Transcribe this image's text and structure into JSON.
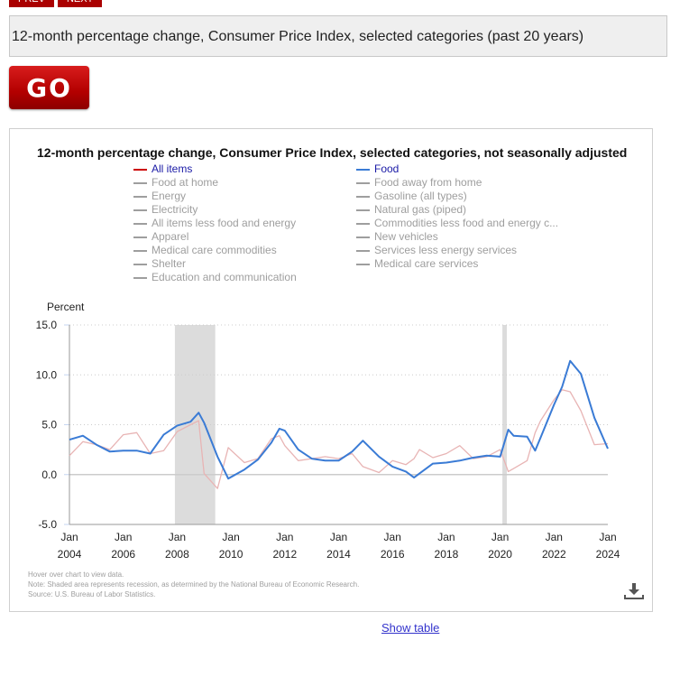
{
  "nav": {
    "prev_label": "PREV",
    "next_label": "NEXT"
  },
  "selector": {
    "value": "12-month percentage change, Consumer Price Index, selected categories (past 20 years)"
  },
  "go_button": {
    "label": "GO"
  },
  "chart": {
    "title": "12-month percentage change, Consumer Price Index, selected categories, not seasonally adjusted",
    "legend_left": [
      {
        "label": "All items",
        "color": "#cc0000",
        "active": true
      },
      {
        "label": "Food at home",
        "color": "#9e9e9e",
        "active": false
      },
      {
        "label": "Energy",
        "color": "#9e9e9e",
        "active": false
      },
      {
        "label": "Electricity",
        "color": "#9e9e9e",
        "active": false
      },
      {
        "label": "All items less food and energy",
        "color": "#9e9e9e",
        "active": false
      },
      {
        "label": "Apparel",
        "color": "#9e9e9e",
        "active": false
      },
      {
        "label": "Medical care commodities",
        "color": "#9e9e9e",
        "active": false
      },
      {
        "label": "Shelter",
        "color": "#9e9e9e",
        "active": false
      },
      {
        "label": "Education and communication",
        "color": "#9e9e9e",
        "active": false
      }
    ],
    "legend_right": [
      {
        "label": "Food",
        "color": "#3a7bd5",
        "active": true
      },
      {
        "label": "Food away from home",
        "color": "#9e9e9e",
        "active": false
      },
      {
        "label": "Gasoline (all types)",
        "color": "#9e9e9e",
        "active": false
      },
      {
        "label": "Natural gas (piped)",
        "color": "#9e9e9e",
        "active": false
      },
      {
        "label": "Commodities less food and energy c...",
        "color": "#9e9e9e",
        "active": false
      },
      {
        "label": "New vehicles",
        "color": "#9e9e9e",
        "active": false
      },
      {
        "label": "Services less energy services",
        "color": "#9e9e9e",
        "active": false
      },
      {
        "label": "Medical care services",
        "color": "#9e9e9e",
        "active": false
      }
    ],
    "ylabel": "Percent",
    "footnotes": [
      "Hover over chart to view data.",
      "Note: Shaded area represents recession, as determined by the National Bureau of Economic Research.",
      "Source: U.S. Bureau of Labor Statistics."
    ]
  },
  "show_table_label": "Show table",
  "chart_data": {
    "type": "line",
    "title": "12-month percentage change, Consumer Price Index, selected categories, not seasonally adjusted",
    "xlabel": "",
    "ylabel": "Percent",
    "ylim": [
      -5,
      15
    ],
    "yticks": [
      "15.0",
      "10.0",
      "5.0",
      "0.0",
      "-5.0"
    ],
    "xticks": [
      "Jan 2004",
      "Jan 2006",
      "Jan 2008",
      "Jan 2010",
      "Jan 2012",
      "Jan 2014",
      "Jan 2016",
      "Jan 2018",
      "Jan 2020",
      "Jan 2022",
      "Jan 2024"
    ],
    "grid": true,
    "legend_position": "top",
    "recessions": [
      [
        "2007-12",
        "2009-06"
      ],
      [
        "2020-02",
        "2020-04"
      ]
    ],
    "x": [
      2004.0,
      2004.5,
      2005.0,
      2005.5,
      2006.0,
      2006.5,
      2007.0,
      2007.5,
      2008.0,
      2008.5,
      2008.8,
      2009.0,
      2009.5,
      2009.9,
      2010.5,
      2011.0,
      2011.5,
      2011.8,
      2012.0,
      2012.5,
      2013.0,
      2013.5,
      2014.0,
      2014.5,
      2014.9,
      2015.5,
      2016.0,
      2016.5,
      2016.8,
      2017.0,
      2017.5,
      2018.0,
      2018.5,
      2019.0,
      2019.5,
      2020.0,
      2020.3,
      2020.5,
      2021.0,
      2021.3,
      2021.5,
      2022.0,
      2022.3,
      2022.6,
      2023.0,
      2023.5,
      2024.0
    ],
    "series": [
      {
        "name": "All items",
        "color": "#e8b4b4",
        "values": [
          1.9,
          3.3,
          3.0,
          2.5,
          4.0,
          4.2,
          2.1,
          2.4,
          4.3,
          5.0,
          5.4,
          0.1,
          -1.4,
          2.7,
          1.2,
          1.6,
          3.6,
          3.9,
          2.9,
          1.4,
          1.6,
          1.8,
          1.6,
          2.1,
          0.8,
          0.2,
          1.4,
          1.0,
          1.6,
          2.5,
          1.7,
          2.1,
          2.9,
          1.6,
          1.8,
          2.5,
          0.3,
          0.6,
          1.4,
          4.2,
          5.4,
          7.5,
          8.5,
          8.3,
          6.4,
          3.0,
          3.1
        ]
      },
      {
        "name": "Food",
        "color": "#3a7bd5",
        "values": [
          3.5,
          3.9,
          3.0,
          2.3,
          2.4,
          2.4,
          2.1,
          4.0,
          4.9,
          5.3,
          6.2,
          5.2,
          1.8,
          -0.4,
          0.5,
          1.5,
          3.2,
          4.6,
          4.4,
          2.5,
          1.6,
          1.4,
          1.4,
          2.3,
          3.4,
          1.8,
          0.8,
          0.3,
          -0.3,
          0.1,
          1.1,
          1.2,
          1.4,
          1.7,
          1.9,
          1.8,
          4.5,
          3.9,
          3.8,
          2.4,
          3.7,
          7.0,
          8.8,
          11.4,
          10.1,
          5.7,
          2.6
        ]
      }
    ]
  }
}
